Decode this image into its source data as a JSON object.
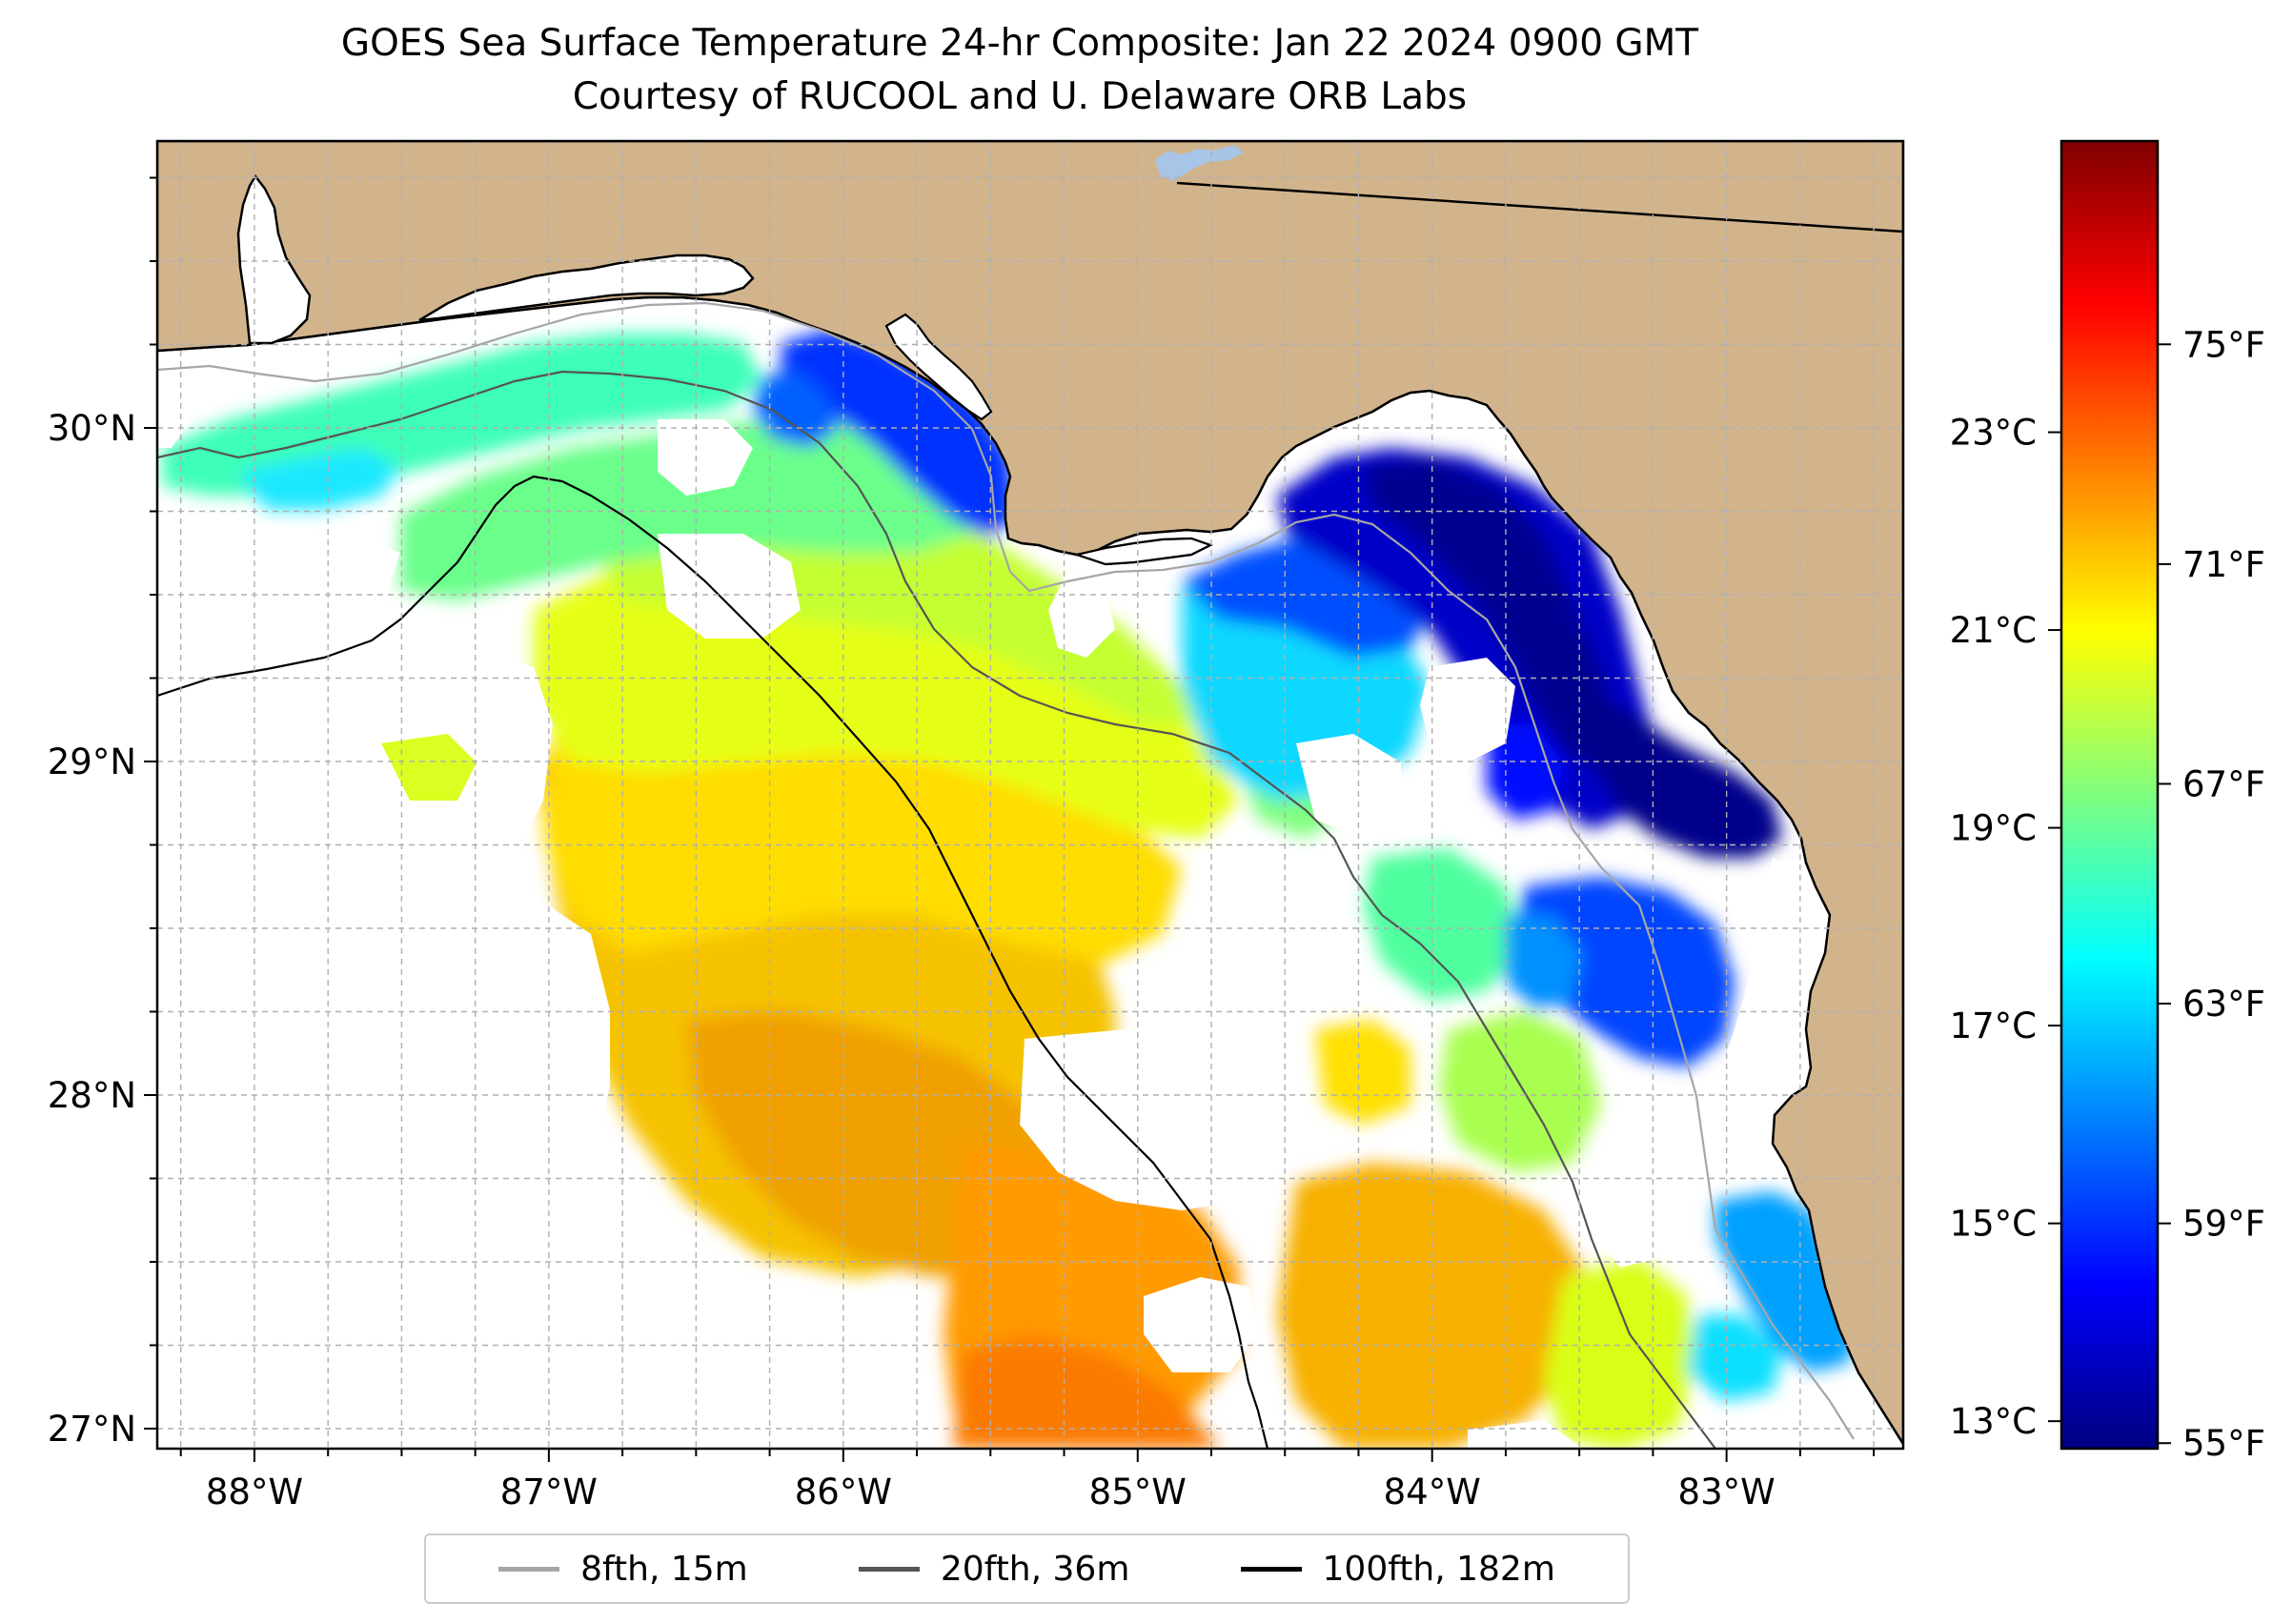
{
  "title": "GOES Sea Surface Temperature 24-hr Composite: Jan 22 2024 0900 GMT",
  "subtitle": "Courtesy of RUCOOL and U. Delaware ORB Labs",
  "map": {
    "lon_range": [
      -88.33,
      -82.4
    ],
    "lat_range": [
      26.94,
      30.86
    ],
    "lon_ticks": [
      "88°W",
      "87°W",
      "86°W",
      "85°W",
      "84°W",
      "83°W"
    ],
    "lon_tick_values": [
      -88,
      -87,
      -86,
      -85,
      -84,
      -83
    ],
    "lat_ticks": [
      "27°N",
      "28°N",
      "29°N",
      "30°N"
    ],
    "lat_tick_values": [
      27,
      28,
      29,
      30
    ],
    "land_color": "#d2b48c",
    "sea_color": "#ffffff",
    "gridlines": "dashed gray every 0.25°"
  },
  "colorbar": {
    "colormap": "jet",
    "celsius_ticks": [
      "13°C",
      "15°C",
      "17°C",
      "19°C",
      "21°C",
      "23°C"
    ],
    "celsius_values": [
      13,
      15,
      17,
      19,
      21,
      23
    ],
    "fahrenheit_ticks": [
      "55°F",
      "59°F",
      "63°F",
      "67°F",
      "71°F",
      "75°F"
    ],
    "fahrenheit_values": [
      55,
      59,
      63,
      67,
      71,
      75
    ],
    "range_f": [
      54.9,
      78.7
    ]
  },
  "legend": {
    "items": [
      {
        "label": "8fth, 15m",
        "color": "#a6a6a6"
      },
      {
        "label": "20fth, 36m",
        "color": "#555555"
      },
      {
        "label": "100fth, 182m",
        "color": "#000000"
      }
    ]
  },
  "colors": {
    "jet_stops": [
      "#00007f",
      "#0000ff",
      "#007fff",
      "#00ffff",
      "#7fff7f",
      "#ffff00",
      "#ff7f00",
      "#ff0000",
      "#7f0000"
    ]
  }
}
